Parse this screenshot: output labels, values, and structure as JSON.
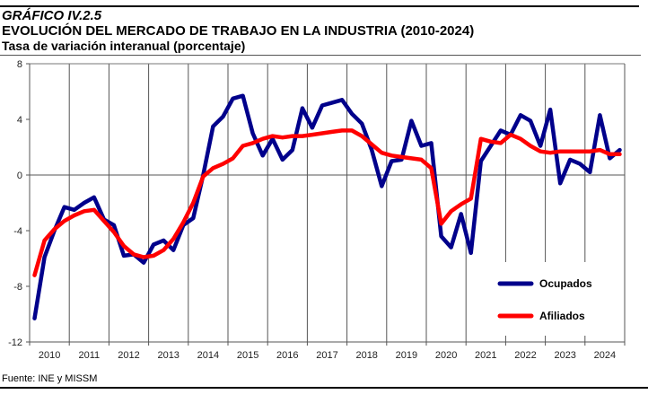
{
  "header": {
    "figure_label": "GRÁFICO IV.2.5",
    "title": "EVOLUCIÓN DEL MERCADO DE TRABAJO EN LA INDUSTRIA (2010-2024)",
    "subtitle": "Tasa de variación interanual (porcentaje)"
  },
  "footer": {
    "source": "Fuente: INE y MISSM"
  },
  "chart_data": {
    "type": "line",
    "title": "EVOLUCIÓN DEL MERCADO DE TRABAJO EN LA INDUSTRIA (2010-2024)",
    "subtitle": "Tasa de variación interanual (porcentaje)",
    "xlabel": "",
    "ylabel": "",
    "frequency": "quarterly",
    "categories": [
      "2010",
      "2011",
      "2012",
      "2013",
      "2014",
      "2015",
      "2016",
      "2017",
      "2018",
      "2019",
      "2020",
      "2021",
      "2022",
      "2023",
      "2024"
    ],
    "yticks": [
      8,
      4,
      0,
      -4,
      -8,
      -12
    ],
    "ylim": [
      -12,
      8
    ],
    "grid": "vertical lines at year boundaries; horizontal line at 0",
    "legend_position": "bottom-right",
    "series": [
      {
        "name": "Ocupados",
        "color": "#00008B",
        "values": [
          -10.3,
          -5.9,
          -4.0,
          -2.3,
          -2.5,
          -2.0,
          -1.6,
          -3.2,
          -3.6,
          -5.8,
          -5.7,
          -6.3,
          -5.0,
          -4.7,
          -5.4,
          -3.6,
          -3.1,
          0.0,
          3.5,
          4.2,
          5.5,
          5.7,
          3.0,
          1.4,
          2.6,
          1.1,
          1.8,
          4.8,
          3.4,
          5.0,
          5.2,
          5.4,
          4.4,
          3.7,
          1.8,
          -0.8,
          1.0,
          1.1,
          3.9,
          2.1,
          2.3,
          -4.4,
          -5.2,
          -2.8,
          -5.6,
          1.0,
          2.1,
          3.2,
          2.9,
          4.3,
          3.9,
          2.1,
          4.7,
          -0.6,
          1.1,
          0.8,
          0.2,
          4.3,
          1.2,
          1.8
        ]
      },
      {
        "name": "Afiliados",
        "color": "#FF0000",
        "values": [
          -7.2,
          -4.7,
          -3.9,
          -3.3,
          -2.9,
          -2.6,
          -2.5,
          -3.3,
          -4.1,
          -5.1,
          -5.7,
          -5.9,
          -5.8,
          -5.4,
          -4.6,
          -3.4,
          -2.0,
          -0.1,
          0.5,
          0.8,
          1.2,
          2.1,
          2.3,
          2.6,
          2.8,
          2.7,
          2.8,
          2.8,
          2.9,
          3.0,
          3.1,
          3.2,
          3.2,
          2.8,
          2.2,
          1.6,
          1.4,
          1.3,
          1.2,
          1.1,
          0.5,
          -3.5,
          -2.6,
          -2.1,
          -1.7,
          2.6,
          2.4,
          2.3,
          2.9,
          2.6,
          2.1,
          1.7,
          1.6,
          1.7,
          1.7,
          1.7,
          1.7,
          1.8,
          1.5,
          1.5
        ]
      }
    ]
  }
}
